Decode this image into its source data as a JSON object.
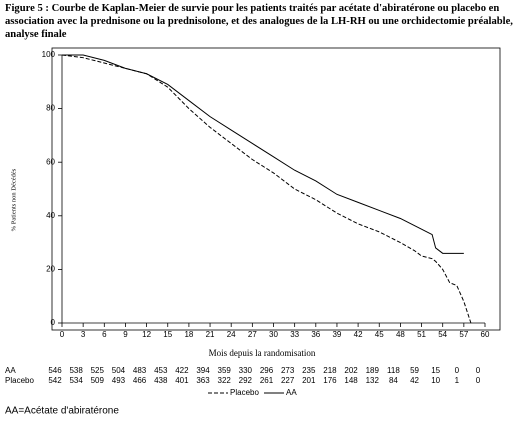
{
  "chart_data": {
    "type": "line",
    "title": "Figure 5 : Courbe de Kaplan-Meier de survie pour les patients traités par acétate d'abiratérone ou placebo en association avec la prednisone ou la prednisolone, et des analogues de la LH-RH ou une orchidectomie préalable, analyse finale",
    "xlabel": "Mois depuis la randomisation",
    "ylabel": "% Patients non Décédés",
    "xlim": [
      0,
      60
    ],
    "xticks": [
      0,
      3,
      6,
      9,
      12,
      15,
      18,
      21,
      24,
      27,
      30,
      33,
      36,
      39,
      42,
      45,
      48,
      51,
      54,
      57,
      60
    ],
    "ylim": [
      0,
      100
    ],
    "yticks": [
      0,
      20,
      40,
      60,
      80,
      100
    ],
    "legend": "bottom",
    "series": [
      {
        "name": "Placebo",
        "color": "#000000",
        "line_style": "dashed",
        "x": [
          0,
          3,
          6,
          9,
          12,
          15,
          18,
          21,
          24,
          27,
          30,
          33,
          36,
          39,
          42,
          45,
          48,
          50,
          51,
          52.5,
          53,
          54,
          55,
          56,
          57,
          58
        ],
        "values": [
          100,
          99,
          97,
          95,
          93,
          88,
          80,
          73,
          67,
          61,
          56,
          50,
          46,
          41,
          37,
          34,
          30,
          27,
          25,
          24,
          23,
          20,
          15,
          14,
          8,
          0
        ]
      },
      {
        "name": "AA",
        "color": "#000000",
        "line_style": "solid",
        "x": [
          0,
          3,
          6,
          9,
          12,
          15,
          18,
          21,
          24,
          27,
          30,
          33,
          36,
          39,
          42,
          45,
          48,
          51,
          52.5,
          53,
          54,
          57
        ],
        "values": [
          100,
          100,
          98,
          95,
          93,
          89,
          83,
          77,
          72,
          67,
          62,
          57,
          53,
          48,
          45,
          42,
          39,
          35,
          33,
          28,
          26,
          26
        ]
      }
    ],
    "risk_table": {
      "rows": [
        {
          "label": "AA",
          "values": [
            546,
            538,
            525,
            504,
            483,
            453,
            422,
            394,
            359,
            330,
            296,
            273,
            235,
            218,
            202,
            189,
            118,
            59,
            15,
            0,
            0
          ]
        },
        {
          "label": "Placebo",
          "values": [
            542,
            534,
            509,
            493,
            466,
            438,
            401,
            363,
            322,
            292,
            261,
            227,
            201,
            176,
            148,
            132,
            84,
            42,
            10,
            1,
            0
          ]
        }
      ]
    },
    "footnote": "AA=Acétate d'abiratérone"
  }
}
